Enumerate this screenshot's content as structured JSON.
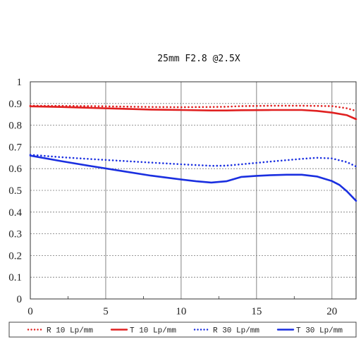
{
  "chart_data": {
    "type": "line",
    "title": "25mm F2.8  @2.5X",
    "xlim": [
      0,
      21.6
    ],
    "ylim": [
      0,
      1
    ],
    "x_ticks": [
      "0",
      "5",
      "10",
      "15",
      "20"
    ],
    "y_ticks": [
      "0",
      "0.1",
      "0.2",
      "0.3",
      "0.4",
      "0.5",
      "0.6",
      "0.7",
      "0.8",
      "0.9",
      "1"
    ],
    "grid": true,
    "legend_position": "bottom",
    "series": [
      {
        "name": "R 10 Lp/mm",
        "color": "#e02020",
        "style": "dotted",
        "x": [
          0,
          2,
          4,
          6,
          8,
          10,
          12,
          13,
          14,
          16,
          18,
          20,
          21,
          21.6
        ],
        "y": [
          0.89,
          0.889,
          0.888,
          0.886,
          0.884,
          0.883,
          0.884,
          0.885,
          0.888,
          0.89,
          0.89,
          0.888,
          0.878,
          0.866
        ]
      },
      {
        "name": "T 10 Lp/mm",
        "color": "#e02020",
        "style": "solid",
        "x": [
          0,
          2,
          4,
          6,
          8,
          10,
          12,
          13,
          14,
          16,
          18,
          19,
          20,
          21,
          21.6
        ],
        "y": [
          0.887,
          0.884,
          0.88,
          0.876,
          0.872,
          0.87,
          0.868,
          0.868,
          0.869,
          0.87,
          0.87,
          0.866,
          0.858,
          0.846,
          0.828
        ]
      },
      {
        "name": "R 30 Lp/mm",
        "color": "#1a2fe0",
        "style": "dotted",
        "x": [
          0,
          2,
          4,
          6,
          8,
          10,
          12,
          13,
          14,
          16,
          18,
          19,
          20,
          21,
          21.6
        ],
        "y": [
          0.664,
          0.653,
          0.644,
          0.636,
          0.628,
          0.62,
          0.613,
          0.614,
          0.62,
          0.633,
          0.645,
          0.65,
          0.647,
          0.63,
          0.61
        ]
      },
      {
        "name": "T 30 Lp/mm",
        "color": "#1a2fe0",
        "style": "solid",
        "x": [
          0,
          2,
          4,
          6,
          8,
          10,
          11,
          12,
          13,
          14,
          15,
          16,
          17,
          18,
          19,
          20,
          20.5,
          21,
          21.6
        ],
        "y": [
          0.66,
          0.635,
          0.612,
          0.59,
          0.568,
          0.55,
          0.542,
          0.536,
          0.542,
          0.562,
          0.567,
          0.57,
          0.572,
          0.572,
          0.564,
          0.543,
          0.525,
          0.495,
          0.452
        ]
      }
    ]
  }
}
